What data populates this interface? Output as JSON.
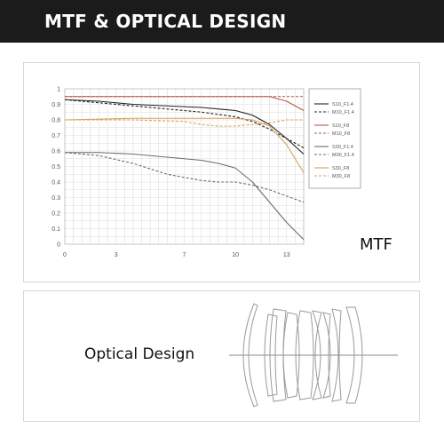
{
  "header": {
    "title": "MTF & OPTICAL DESIGN"
  },
  "mtf_label": "MTF",
  "optical_label": "Optical Design",
  "colors": {
    "dark": "#222222",
    "red": "#b35a4a",
    "orange": "#d9a05a",
    "gray": "#6c6c6c",
    "header_bg": "#1b1b1b"
  },
  "lens_icon": "lens-cross-section",
  "chart_data": {
    "type": "line",
    "xlim": [
      0,
      14
    ],
    "ylim": [
      0,
      1
    ],
    "xticks": [
      0,
      3,
      7,
      10,
      13
    ],
    "yticks": [
      0,
      0.1,
      0.2,
      0.3,
      0.4,
      0.5,
      0.6,
      0.7,
      0.8,
      0.9,
      1
    ],
    "ytick_labels": [
      "0",
      "0.1",
      "0.2",
      "0.3",
      "0.4",
      "0.5",
      "0.6",
      "0.7",
      "0.8",
      "0.9",
      "1"
    ],
    "grid": true,
    "legend_position": "right",
    "series": [
      {
        "name": "S10_F1.4",
        "color": "#222222",
        "dash": false,
        "x": [
          0,
          2,
          4,
          6,
          8,
          10,
          11,
          12,
          13,
          14
        ],
        "y": [
          0.93,
          0.92,
          0.9,
          0.89,
          0.88,
          0.86,
          0.83,
          0.77,
          0.68,
          0.58
        ]
      },
      {
        "name": "M10_F1.4",
        "color": "#222222",
        "dash": true,
        "x": [
          0,
          2,
          4,
          6,
          8,
          10,
          11,
          12,
          13,
          14
        ],
        "y": [
          0.93,
          0.91,
          0.89,
          0.87,
          0.85,
          0.82,
          0.79,
          0.74,
          0.68,
          0.62
        ]
      },
      {
        "name": "S10_F8",
        "color": "#b35a4a",
        "dash": false,
        "x": [
          0,
          4,
          8,
          10,
          12,
          13,
          14
        ],
        "y": [
          0.95,
          0.95,
          0.95,
          0.95,
          0.95,
          0.92,
          0.86
        ]
      },
      {
        "name": "M10_F8",
        "color": "#b35a4a",
        "dash": true,
        "x": [
          0,
          4,
          8,
          10,
          12,
          13,
          14
        ],
        "y": [
          0.95,
          0.95,
          0.95,
          0.95,
          0.95,
          0.95,
          0.95
        ]
      },
      {
        "name": "S30_F1.4",
        "color": "#6c6c6c",
        "dash": false,
        "x": [
          0,
          2,
          4,
          6,
          8,
          9,
          10,
          11,
          12,
          13,
          14
        ],
        "y": [
          0.59,
          0.59,
          0.58,
          0.56,
          0.54,
          0.52,
          0.49,
          0.4,
          0.27,
          0.14,
          0.03
        ]
      },
      {
        "name": "M30_F1.4",
        "color": "#6c6c6c",
        "dash": true,
        "x": [
          0,
          2,
          4,
          6,
          8,
          9,
          10,
          11,
          12,
          13,
          14
        ],
        "y": [
          0.59,
          0.57,
          0.52,
          0.45,
          0.41,
          0.4,
          0.4,
          0.38,
          0.35,
          0.31,
          0.27
        ]
      },
      {
        "name": "S30_F8",
        "color": "#d9a05a",
        "dash": false,
        "x": [
          0,
          4,
          8,
          10,
          11,
          12,
          13,
          14
        ],
        "y": [
          0.8,
          0.81,
          0.81,
          0.81,
          0.8,
          0.76,
          0.64,
          0.46
        ]
      },
      {
        "name": "M30_F8",
        "color": "#d9a05a",
        "dash": true,
        "x": [
          0,
          4,
          7,
          8,
          9,
          10,
          11,
          12,
          13,
          14
        ],
        "y": [
          0.8,
          0.8,
          0.79,
          0.77,
          0.76,
          0.76,
          0.77,
          0.78,
          0.8,
          0.8
        ]
      }
    ]
  }
}
